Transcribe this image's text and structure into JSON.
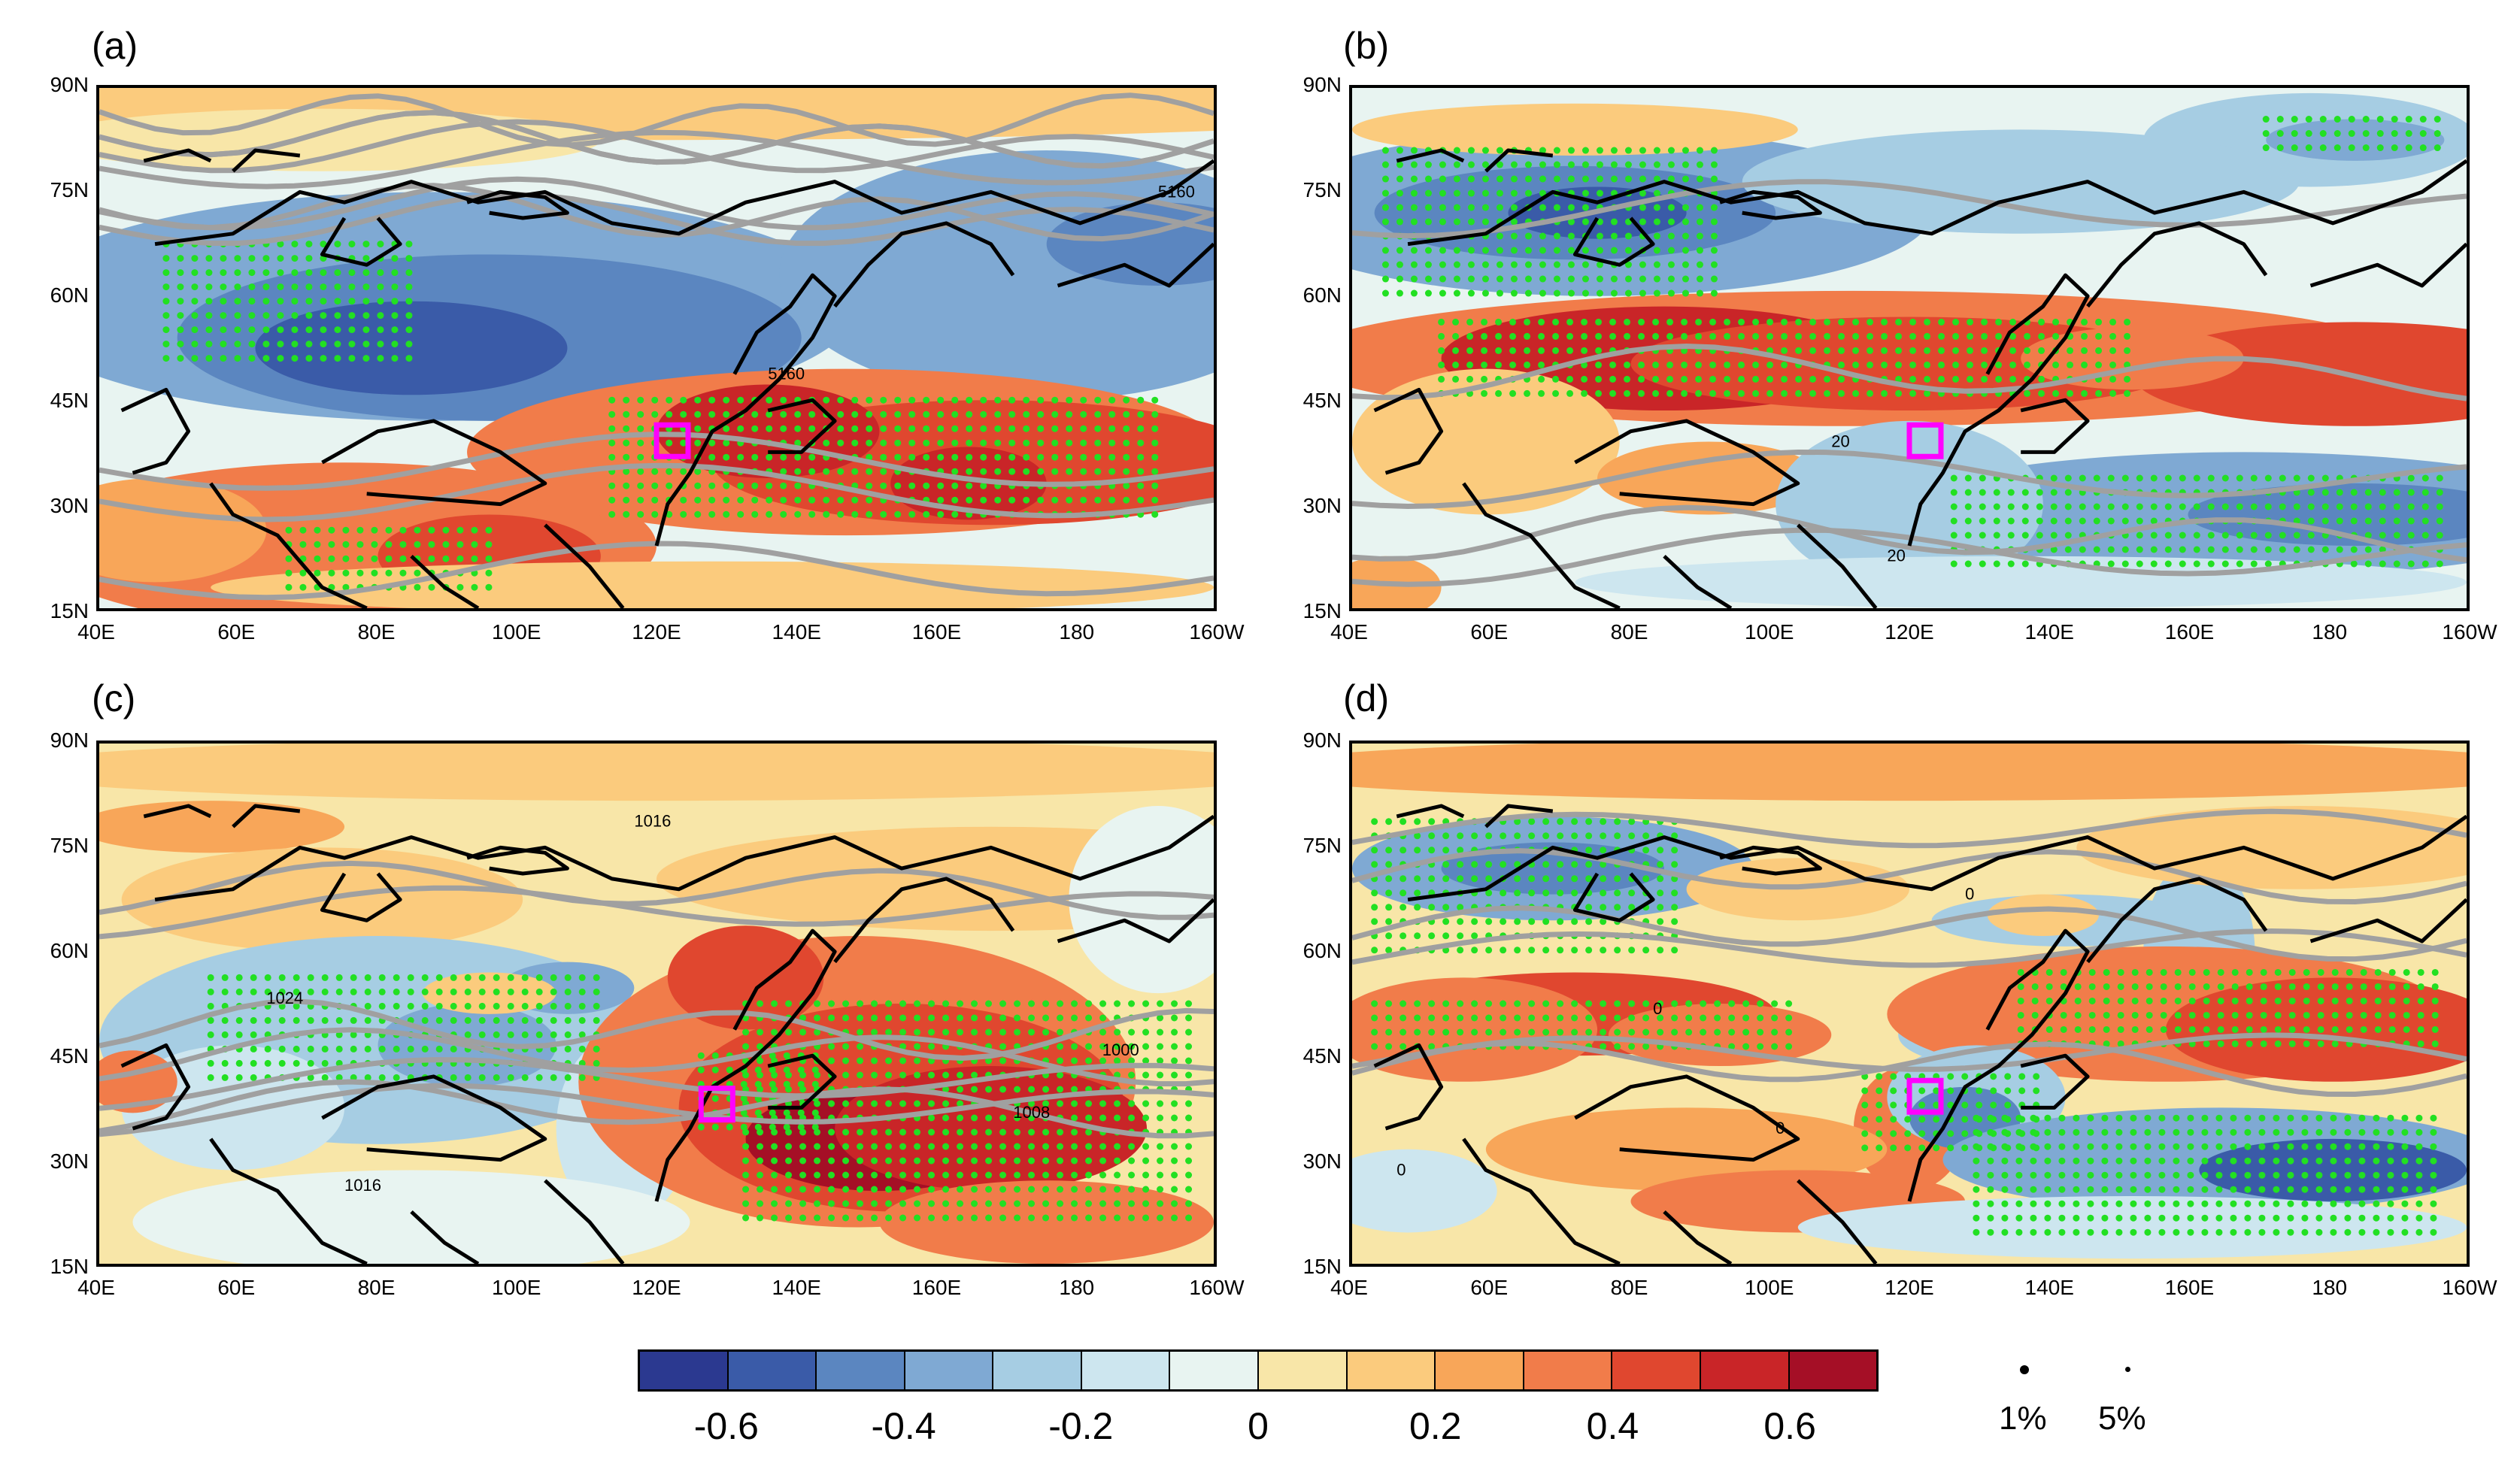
{
  "panels": [
    {
      "letter": "(a)",
      "contour_labels": [
        "5160",
        "5160"
      ]
    },
    {
      "letter": "(b)",
      "contour_labels": [
        "20",
        "20"
      ]
    },
    {
      "letter": "(c)",
      "contour_labels": [
        "1016",
        "1024",
        "1016",
        "1000",
        "1008"
      ]
    },
    {
      "letter": "(d)",
      "contour_labels": [
        "0",
        "0",
        "0",
        "0"
      ]
    }
  ],
  "lat_labels": [
    "90N",
    "75N",
    "60N",
    "45N",
    "30N",
    "15N"
  ],
  "lon_labels": [
    "40E",
    "60E",
    "80E",
    "100E",
    "120E",
    "140E",
    "160E",
    "180",
    "160W"
  ],
  "colorbar": {
    "colors": [
      "#2b3990",
      "#3a5ba8",
      "#5b86c0",
      "#7fa9d3",
      "#a6cde3",
      "#cde6ef",
      "#e8f4f1",
      "#f8e6a8",
      "#fbcb7d",
      "#f8a659",
      "#f17c4a",
      "#e0472f",
      "#c92528",
      "#a50f26"
    ],
    "tick_labels": [
      "-0.6",
      "-0.4",
      "-0.2",
      "0",
      "0.2",
      "0.4",
      "0.6"
    ]
  },
  "significance": {
    "labels": [
      "1%",
      "5%"
    ]
  },
  "colors": {
    "stipple": "#22e022",
    "contour": "#a0a0a0",
    "box": "#ff00ff",
    "coast": "#000000"
  }
}
